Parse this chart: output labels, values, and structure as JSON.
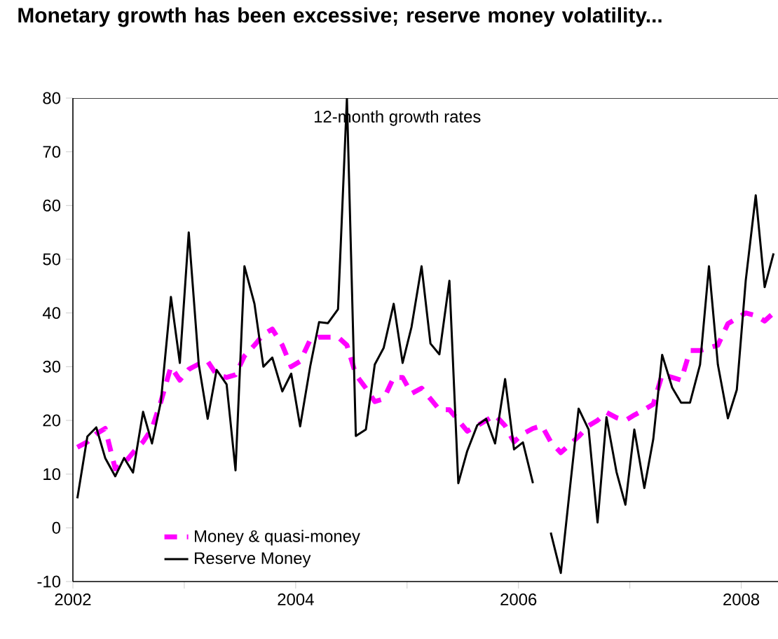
{
  "chart_data": {
    "type": "line",
    "title": "Monetary growth has been excessive; reserve money volatility...",
    "annotations": [
      "12-month growth rates"
    ],
    "x": [
      2002.04,
      2002.13,
      2002.21,
      2002.29,
      2002.38,
      2002.46,
      2002.54,
      2002.63,
      2002.71,
      2002.79,
      2002.88,
      2002.96,
      2003.04,
      2003.13,
      2003.21,
      2003.29,
      2003.38,
      2003.46,
      2003.54,
      2003.63,
      2003.71,
      2003.79,
      2003.88,
      2003.96,
      2004.04,
      2004.13,
      2004.21,
      2004.29,
      2004.38,
      2004.46,
      2004.54,
      2004.63,
      2004.71,
      2004.79,
      2004.88,
      2004.96,
      2005.04,
      2005.13,
      2005.21,
      2005.29,
      2005.38,
      2005.46,
      2005.54,
      2005.63,
      2005.71,
      2005.79,
      2005.88,
      2005.96,
      2006.04,
      2006.13,
      2006.21,
      2006.29,
      2006.38,
      2006.46,
      2006.54,
      2006.63,
      2006.71,
      2006.79,
      2006.88,
      2006.96,
      2007.04,
      2007.13,
      2007.21,
      2007.29,
      2007.38,
      2007.46,
      2007.54,
      2007.63,
      2007.71,
      2007.79,
      2007.88,
      2007.96,
      2008.04,
      2008.13,
      2008.21,
      2008.29
    ],
    "series": [
      {
        "name": "Money & quasi-money",
        "color": "#ff00ff",
        "line_style": "dashed",
        "values": [
          15,
          16,
          17.5,
          18.5,
          11,
          12,
          14,
          16,
          18.5,
          23.5,
          30,
          27.5,
          29.5,
          30.5,
          31,
          28.5,
          28,
          28.5,
          32,
          34,
          36,
          37,
          34,
          30,
          31,
          35,
          35.5,
          35.5,
          35.5,
          34,
          28.5,
          26,
          23.5,
          24,
          28,
          28,
          25,
          26,
          24,
          22,
          22,
          20,
          18,
          19,
          20,
          21,
          19,
          16,
          17.5,
          18.5,
          19,
          16,
          14,
          15.5,
          17,
          19,
          20,
          21.5,
          20.5,
          20,
          21,
          22,
          23,
          28.5,
          28,
          27.5,
          33,
          33,
          33.5,
          34,
          38,
          39,
          40,
          39.5,
          38.5,
          40
        ]
      },
      {
        "name": "Reserve Money",
        "color": "#000000",
        "line_style": "solid",
        "values": [
          5.5,
          17,
          18.7,
          13,
          9.6,
          13,
          10.3,
          21.6,
          15.7,
          23.5,
          43,
          30.7,
          55,
          30.4,
          20.3,
          29.4,
          26.7,
          10.7,
          48.7,
          41.7,
          30,
          31.7,
          25.4,
          28.7,
          18.9,
          30,
          38.3,
          38.1,
          40.7,
          80,
          17.1,
          18.3,
          30.4,
          33.5,
          41.7,
          30.7,
          37.4,
          48.7,
          34.3,
          32.3,
          46,
          8.3,
          14.3,
          19.1,
          20.3,
          15.7,
          27.7,
          14.6,
          15.9,
          8.3,
          null,
          -0.9,
          -8.4,
          7,
          22.2,
          18.3,
          1,
          20.6,
          10.4,
          4.3,
          18.3,
          7.4,
          16.5,
          32.2,
          26.1,
          23.3,
          23.3,
          30.4,
          48.7,
          30.4,
          20.4,
          25.7,
          46,
          61.9,
          44.8,
          51.1
        ]
      }
    ],
    "xlim": [
      2002,
      2008.33
    ],
    "xticks": [
      2002,
      {
        "value": 2003,
        "label": null
      },
      2004,
      {
        "value": 2005,
        "label": null
      },
      2006,
      {
        "value": 2007,
        "label": null
      },
      2008
    ],
    "ylim": [
      -10,
      80
    ],
    "yticks": [
      -10,
      0,
      10,
      20,
      30,
      40,
      50,
      60,
      70,
      80
    ],
    "grid": false,
    "legend": "bottom left",
    "marker": "none"
  }
}
